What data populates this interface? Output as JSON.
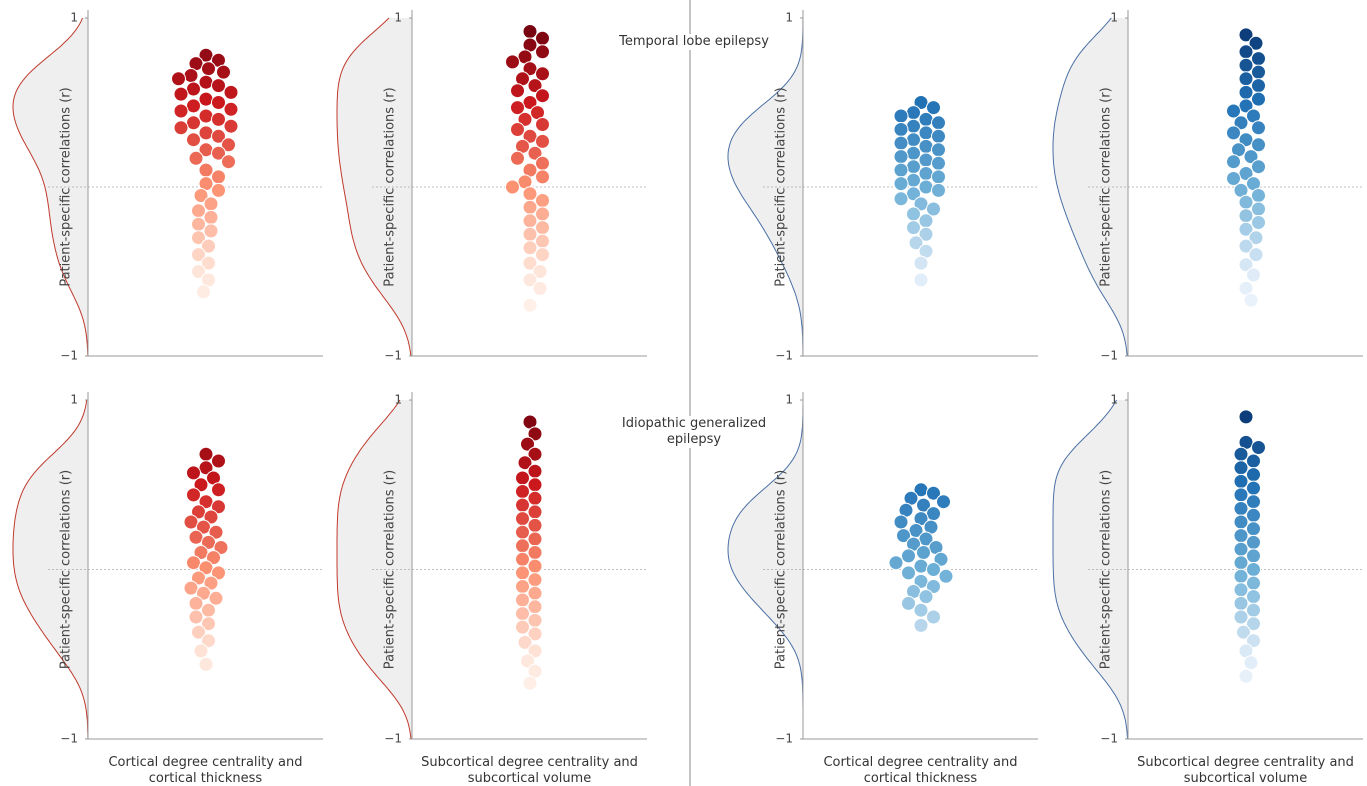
{
  "chart_data": [
    {
      "type": "swarm",
      "ylabel": "Patient-specific correlations (r)",
      "ylim": [
        -1,
        1
      ],
      "yticks": [
        {
          "value": -1,
          "label": "−1"
        },
        1
      ],
      "colors": [
        "#ffffff",
        "#fee5d9",
        "#fc9272",
        "#cb181d",
        "#67000d"
      ],
      "density_color": "#c0392b",
      "values": [
        0.78,
        0.75,
        0.73,
        0.7,
        0.68,
        0.66,
        0.64,
        0.62,
        0.6,
        0.58,
        0.56,
        0.55,
        0.52,
        0.5,
        0.48,
        0.46,
        0.45,
        0.42,
        0.4,
        0.38,
        0.36,
        0.35,
        0.32,
        0.3,
        0.28,
        0.25,
        0.22,
        0.2,
        0.17,
        0.15,
        0.1,
        0.06,
        0.02,
        -0.02,
        -0.05,
        -0.1,
        -0.14,
        -0.18,
        -0.22,
        -0.26,
        -0.3,
        -0.35,
        -0.4,
        -0.45,
        -0.5,
        -0.55,
        -0.62
      ]
    },
    {
      "type": "swarm",
      "ylabel": "Patient-specific correlations (r)",
      "annotation": "Temporal lobe epilepsy",
      "ylim": [
        -1,
        1
      ],
      "yticks": [
        {
          "value": -1,
          "label": "−1"
        },
        1
      ],
      "colors": [
        "#ffffff",
        "#fee5d9",
        "#fc9272",
        "#cb181d",
        "#67000d"
      ],
      "density_color": "#c0392b",
      "values": [
        0.92,
        0.88,
        0.84,
        0.8,
        0.77,
        0.74,
        0.7,
        0.67,
        0.64,
        0.6,
        0.57,
        0.54,
        0.5,
        0.47,
        0.44,
        0.4,
        0.37,
        0.34,
        0.3,
        0.27,
        0.24,
        0.2,
        0.17,
        0.14,
        0.1,
        0.06,
        0.03,
        0.0,
        -0.04,
        -0.08,
        -0.12,
        -0.16,
        -0.2,
        -0.24,
        -0.28,
        -0.32,
        -0.36,
        -0.4,
        -0.45,
        -0.5,
        -0.55,
        -0.6,
        -0.7
      ]
    },
    {
      "type": "swarm",
      "ylabel": "Patient-specific correlations (r)",
      "ylim": [
        -1,
        1
      ],
      "yticks": [
        {
          "value": -1,
          "label": "−1"
        },
        1
      ],
      "colors": [
        "#ffffff",
        "#deebf7",
        "#6baed6",
        "#2171b5",
        "#08306b"
      ],
      "density_color": "#4a6fa5",
      "values": [
        0.5,
        0.47,
        0.44,
        0.42,
        0.4,
        0.38,
        0.36,
        0.34,
        0.32,
        0.3,
        0.28,
        0.26,
        0.24,
        0.22,
        0.2,
        0.18,
        0.16,
        0.14,
        0.12,
        0.1,
        0.08,
        0.06,
        0.04,
        0.02,
        0.0,
        -0.02,
        -0.04,
        -0.07,
        -0.1,
        -0.13,
        -0.16,
        -0.2,
        -0.24,
        -0.28,
        -0.33,
        -0.38,
        -0.45,
        -0.55
      ]
    },
    {
      "type": "swarm",
      "ylabel": "Patient-specific correlations (r)",
      "ylim": [
        -1,
        1
      ],
      "yticks": [
        {
          "value": -1,
          "label": "−1"
        },
        1
      ],
      "colors": [
        "#ffffff",
        "#deebf7",
        "#6baed6",
        "#2171b5",
        "#08306b"
      ],
      "density_color": "#4a6fa5",
      "values": [
        0.9,
        0.85,
        0.8,
        0.76,
        0.72,
        0.68,
        0.64,
        0.6,
        0.56,
        0.52,
        0.48,
        0.45,
        0.42,
        0.38,
        0.35,
        0.32,
        0.28,
        0.25,
        0.22,
        0.18,
        0.15,
        0.12,
        0.08,
        0.05,
        0.02,
        -0.02,
        -0.05,
        -0.09,
        -0.13,
        -0.17,
        -0.21,
        -0.25,
        -0.3,
        -0.35,
        -0.4,
        -0.46,
        -0.52,
        -0.6,
        -0.67
      ]
    },
    {
      "type": "swarm",
      "ylabel": "Patient-specific correlations (r)",
      "xlabel": "Cortical degree centrality and cortical thickness",
      "ylim": [
        -1,
        1
      ],
      "yticks": [
        {
          "value": -1,
          "label": "−1"
        },
        1
      ],
      "colors": [
        "#ffffff",
        "#fee5d9",
        "#fc9272",
        "#cb181d",
        "#67000d"
      ],
      "density_color": "#c0392b",
      "values": [
        0.68,
        0.64,
        0.6,
        0.57,
        0.54,
        0.5,
        0.47,
        0.44,
        0.4,
        0.37,
        0.34,
        0.31,
        0.28,
        0.25,
        0.22,
        0.19,
        0.16,
        0.13,
        0.1,
        0.07,
        0.04,
        0.01,
        -0.02,
        -0.05,
        -0.08,
        -0.11,
        -0.14,
        -0.17,
        -0.2,
        -0.24,
        -0.28,
        -0.32,
        -0.37,
        -0.42,
        -0.48,
        -0.56
      ]
    },
    {
      "type": "swarm",
      "ylabel": "Patient-specific correlations (r)",
      "xlabel": "Subcortical degree centrality and subcortical volume",
      "annotation": "Idiopathic generalized epilepsy",
      "ylim": [
        -1,
        1
      ],
      "yticks": [
        {
          "value": -1,
          "label": "−1"
        },
        1
      ],
      "colors": [
        "#ffffff",
        "#fee5d9",
        "#fc9272",
        "#cb181d",
        "#67000d"
      ],
      "density_color": "#c0392b",
      "values": [
        0.87,
        0.8,
        0.74,
        0.68,
        0.63,
        0.58,
        0.54,
        0.5,
        0.46,
        0.42,
        0.38,
        0.34,
        0.3,
        0.26,
        0.22,
        0.18,
        0.14,
        0.1,
        0.06,
        0.02,
        -0.02,
        -0.06,
        -0.1,
        -0.14,
        -0.18,
        -0.22,
        -0.26,
        -0.3,
        -0.34,
        -0.38,
        -0.43,
        -0.48,
        -0.54,
        -0.6,
        -0.67
      ]
    },
    {
      "type": "swarm",
      "ylabel": "Patient-specific correlations (r)",
      "xlabel": "Cortical degree centrality and cortical thickness",
      "ylim": [
        -1,
        1
      ],
      "yticks": [
        {
          "value": -1,
          "label": "−1"
        },
        1
      ],
      "colors": [
        "#ffffff",
        "#deebf7",
        "#6baed6",
        "#2171b5",
        "#08306b"
      ],
      "density_color": "#4a6fa5",
      "values": [
        0.47,
        0.45,
        0.42,
        0.4,
        0.38,
        0.35,
        0.33,
        0.3,
        0.28,
        0.25,
        0.23,
        0.2,
        0.18,
        0.15,
        0.13,
        0.1,
        0.08,
        0.06,
        0.04,
        0.02,
        0.0,
        -0.02,
        -0.04,
        -0.07,
        -0.1,
        -0.13,
        -0.16,
        -0.2,
        -0.24,
        -0.28,
        -0.33
      ]
    },
    {
      "type": "swarm",
      "ylabel": "Patient-specific correlations (r)",
      "xlabel": "Subcortical degree centrality and subcortical volume",
      "ylim": [
        -1,
        1
      ],
      "yticks": [
        {
          "value": -1,
          "label": "−1"
        },
        1
      ],
      "colors": [
        "#ffffff",
        "#deebf7",
        "#6baed6",
        "#2171b5",
        "#08306b"
      ],
      "density_color": "#4a6fa5",
      "values": [
        0.9,
        0.75,
        0.72,
        0.68,
        0.64,
        0.6,
        0.56,
        0.52,
        0.48,
        0.44,
        0.4,
        0.36,
        0.32,
        0.28,
        0.24,
        0.2,
        0.16,
        0.12,
        0.08,
        0.04,
        0.0,
        -0.04,
        -0.08,
        -0.12,
        -0.16,
        -0.2,
        -0.24,
        -0.28,
        -0.32,
        -0.37,
        -0.42,
        -0.48,
        -0.55,
        -0.63
      ]
    }
  ]
}
